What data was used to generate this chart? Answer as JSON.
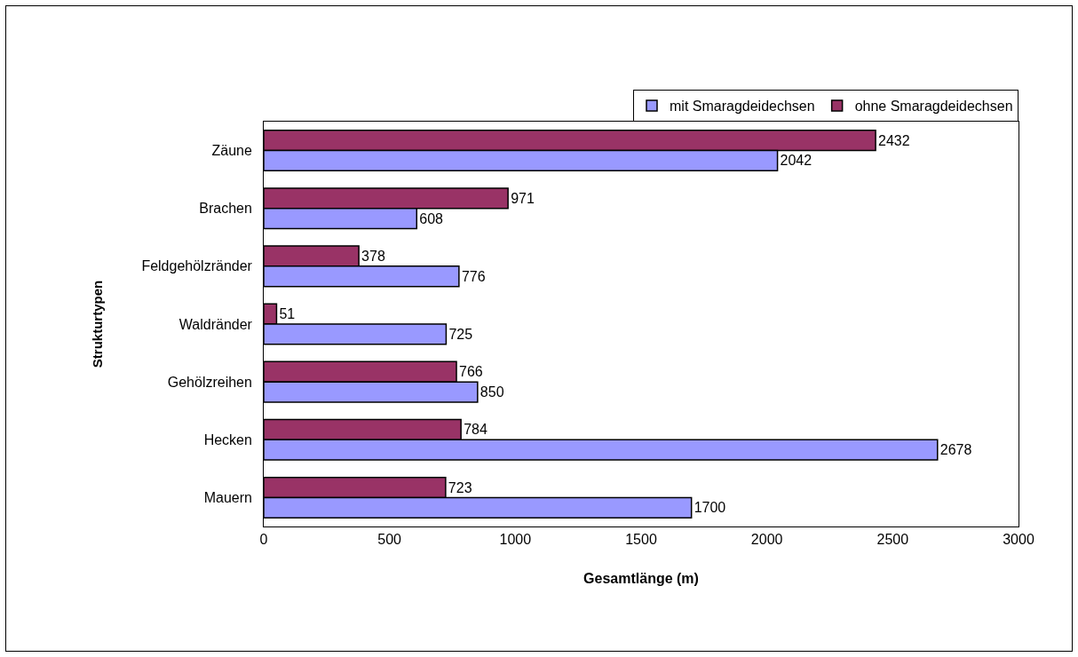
{
  "chart_data": {
    "type": "bar",
    "orientation": "horizontal",
    "xlabel": "Gesamtlänge (m)",
    "ylabel": "Strukturtypen",
    "categories": [
      "Zäune",
      "Brachen",
      "Feldgehölzränder",
      "Waldränder",
      "Gehölzreihen",
      "Hecken",
      "Mauern"
    ],
    "series": [
      {
        "name": "mit Smaragdeidechsen",
        "color": "#9999ff",
        "values": [
          2042,
          608,
          776,
          725,
          850,
          2678,
          1700
        ]
      },
      {
        "name": "ohne Smaragdeidechsen",
        "color": "#993366",
        "values": [
          2432,
          971,
          378,
          51,
          766,
          784,
          723
        ]
      }
    ],
    "xlim": [
      0,
      3000
    ],
    "xticks": [
      0,
      500,
      1000,
      1500,
      2000,
      2500,
      3000
    ],
    "data_labels": true,
    "grid": false,
    "legend": "top right"
  }
}
